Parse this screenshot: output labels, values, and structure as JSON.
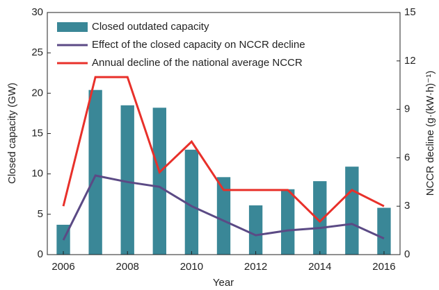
{
  "chart_data": {
    "type": "bar",
    "x": [
      2006,
      2007,
      2008,
      2009,
      2010,
      2011,
      2012,
      2013,
      2014,
      2015,
      2016
    ],
    "xlim": [
      2005.5,
      2016.5
    ],
    "xticks": [
      2006,
      2008,
      2010,
      2012,
      2014,
      2016
    ],
    "ylim": [
      0,
      30
    ],
    "yticks": [
      0,
      5,
      10,
      15,
      20,
      25,
      30
    ],
    "y2lim": [
      0,
      15
    ],
    "y2ticks": [
      0,
      3,
      6,
      9,
      12,
      15
    ],
    "xlabel": "Year",
    "ylabel": "Closed capacity (GW)",
    "y2label": "NCCR decline (g·(kW·h)⁻¹)",
    "legend": "upper left",
    "series": [
      {
        "name": "Closed outdated capacity",
        "type": "bar",
        "color": "#3a8797",
        "values": [
          3.7,
          20.4,
          18.5,
          18.2,
          13.0,
          9.6,
          6.1,
          8.1,
          9.1,
          10.9,
          5.8
        ]
      },
      {
        "name": "Effect of the closed capacity on NCCR decline",
        "type": "line",
        "axis": "y2",
        "color": "#5b4a85",
        "values": [
          0.9,
          4.9,
          4.5,
          4.2,
          3.0,
          2.1,
          1.2,
          1.5,
          1.65,
          1.9,
          1.0
        ]
      },
      {
        "name": "Annual decline of the national average NCCR",
        "type": "line",
        "axis": "y2",
        "color": "#e8302a",
        "values": [
          3,
          11,
          11,
          5.1,
          7,
          4,
          4,
          4,
          2.05,
          4,
          3
        ]
      }
    ]
  }
}
